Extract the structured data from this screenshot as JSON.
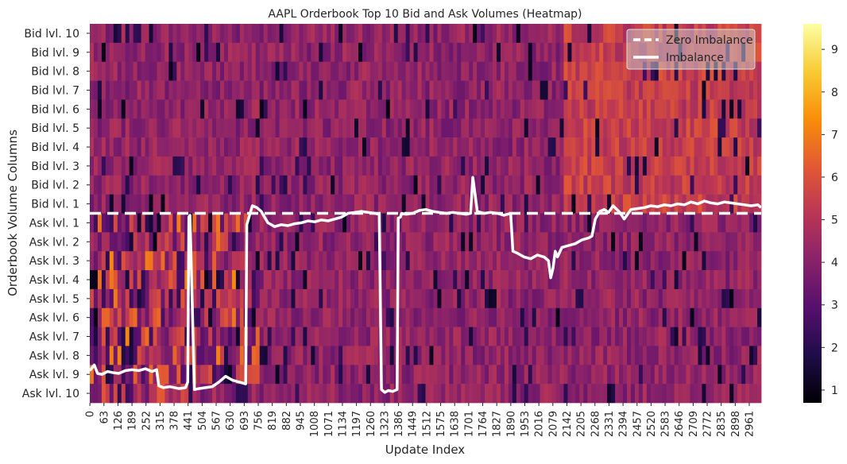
{
  "chart_data": {
    "type": "heatmap",
    "title": "AAPL Orderbook Top 10 Bid and Ask Volumes (Heatmap)",
    "xlabel": "Update Index",
    "ylabel": "Orderbook Volume Columns",
    "rows": [
      "Bid lvl. 10",
      "Bid lvl. 9",
      "Bid lvl. 8",
      "Bid lvl. 7",
      "Bid lvl. 6",
      "Bid lvl. 5",
      "Bid lvl. 4",
      "Bid lvl. 3",
      "Bid lvl. 2",
      "Bid lvl. 1",
      "Ask lvl. 1",
      "Ask lvl. 2",
      "Ask lvl. 3",
      "Ask lvl. 4",
      "Ask lvl. 5",
      "Ask lvl. 6",
      "Ask lvl. 7",
      "Ask lvl. 8",
      "Ask lvl. 9",
      "Ask lvl. 10"
    ],
    "x_ticks": [
      0,
      63,
      126,
      189,
      252,
      315,
      378,
      441,
      504,
      567,
      630,
      693,
      756,
      819,
      882,
      945,
      1008,
      1071,
      1134,
      1197,
      1260,
      1323,
      1386,
      1449,
      1512,
      1575,
      1638,
      1701,
      1764,
      1827,
      1890,
      1953,
      2016,
      2079,
      2142,
      2205,
      2268,
      2331,
      2394,
      2457,
      2520,
      2583,
      2646,
      2709,
      2772,
      2835,
      2898,
      2961
    ],
    "x_max": 3015,
    "colorbar": {
      "ticks": [
        1,
        2,
        3,
        4,
        5,
        6,
        7,
        8,
        9
      ],
      "range": [
        0.7,
        9.6
      ],
      "colormap": "inferno"
    },
    "legend": {
      "placement": "top-right",
      "entries": [
        {
          "label": "Zero Imbalance",
          "style": "dashed",
          "color": "#ffffff"
        },
        {
          "label": "Imbalance",
          "style": "solid",
          "color": "#ffffff"
        }
      ]
    },
    "zero_imbalance_row": 10,
    "imbalance": {
      "x": [
        0,
        20,
        35,
        55,
        80,
        100,
        130,
        160,
        190,
        220,
        250,
        280,
        300,
        310,
        330,
        360,
        400,
        430,
        440,
        445,
        450,
        470,
        490,
        520,
        550,
        580,
        610,
        640,
        670,
        700,
        705,
        710,
        730,
        750,
        770,
        790,
        800,
        830,
        860,
        890,
        920,
        950,
        980,
        1010,
        1040,
        1070,
        1100,
        1130,
        1160,
        1190,
        1220,
        1250,
        1280,
        1300,
        1310,
        1325,
        1340,
        1360,
        1380,
        1385,
        1395,
        1400,
        1420,
        1450,
        1480,
        1510,
        1540,
        1570,
        1600,
        1630,
        1660,
        1690,
        1710,
        1720,
        1740,
        1770,
        1800,
        1830,
        1860,
        1890,
        1900,
        1920,
        1950,
        1980,
        2010,
        2040,
        2060,
        2070,
        2080,
        2090,
        2100,
        2120,
        2150,
        2180,
        2210,
        2240,
        2255,
        2270,
        2290,
        2310,
        2330,
        2350,
        2380,
        2400,
        2430,
        2460,
        2490,
        2520,
        2550,
        2580,
        2610,
        2640,
        2670,
        2700,
        2730,
        2760,
        2790,
        2820,
        2850,
        2880,
        2910,
        2940,
        2970,
        3000,
        3015
      ],
      "y": [
        18.3,
        18.0,
        18.45,
        18.5,
        18.35,
        18.4,
        18.45,
        18.3,
        18.25,
        18.3,
        18.2,
        18.35,
        18.25,
        19.1,
        19.2,
        19.15,
        19.25,
        19.2,
        18.9,
        10.2,
        10.1,
        19.3,
        19.25,
        19.2,
        19.15,
        18.9,
        18.6,
        18.8,
        18.9,
        19.0,
        10.6,
        10.4,
        9.6,
        9.7,
        9.9,
        10.3,
        10.5,
        10.7,
        10.6,
        10.65,
        10.55,
        10.5,
        10.4,
        10.45,
        10.35,
        10.4,
        10.3,
        10.2,
        10.0,
        9.95,
        9.9,
        9.95,
        10.0,
        10.05,
        19.3,
        19.45,
        19.35,
        19.4,
        19.3,
        10.25,
        10.2,
        10.0,
        10.05,
        10.0,
        9.85,
        9.8,
        9.9,
        9.95,
        10.0,
        9.95,
        10.0,
        10.05,
        10.0,
        8.1,
        9.9,
        10.0,
        9.95,
        10.0,
        10.1,
        10.0,
        12.0,
        12.1,
        12.3,
        12.4,
        12.2,
        12.3,
        12.5,
        13.4,
        12.9,
        12.0,
        12.3,
        11.8,
        11.7,
        11.6,
        11.4,
        11.3,
        11.2,
        10.3,
        9.9,
        9.8,
        9.95,
        9.6,
        9.95,
        10.3,
        9.8,
        9.75,
        9.7,
        9.6,
        9.65,
        9.55,
        9.6,
        9.5,
        9.55,
        9.4,
        9.5,
        9.35,
        9.45,
        9.5,
        9.4,
        9.45,
        9.5,
        9.55,
        9.6,
        9.55,
        9.7
      ]
    }
  }
}
